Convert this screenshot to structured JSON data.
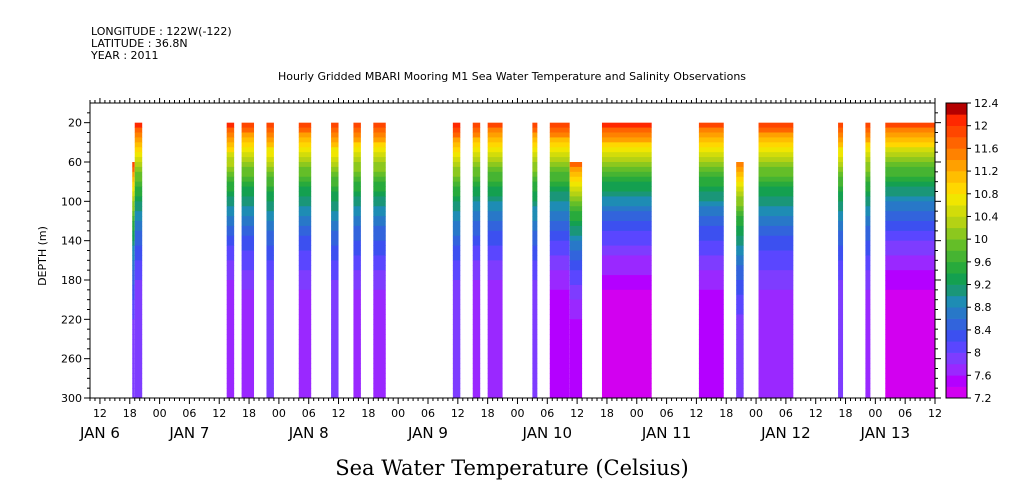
{
  "header": {
    "longitude": "LONGITUDE : 122W(-122)",
    "latitude": "LATITUDE : 36.8N",
    "year": "YEAR : 2011"
  },
  "footer": {
    "title": "Sea Water Temperature (Celsius)"
  },
  "chart_data": {
    "type": "heatmap",
    "title": "Hourly Gridded MBARI Mooring M1 Sea Water Temperature and Salinity Observations",
    "xlabel": "",
    "ylabel": "DEPTH (m)",
    "x_unit": "hours since JAN 6 00:00 (2011)",
    "xlim": [
      10,
      180
    ],
    "ylim": [
      300,
      0
    ],
    "y_ticks": [
      20,
      60,
      100,
      140,
      180,
      220,
      260,
      300
    ],
    "x_tick_labels": [
      {
        "x": 12,
        "label": "12"
      },
      {
        "x": 18,
        "label": "18"
      },
      {
        "x": 24,
        "label": "00"
      },
      {
        "x": 30,
        "label": "06"
      },
      {
        "x": 36,
        "label": "12"
      },
      {
        "x": 42,
        "label": "18"
      },
      {
        "x": 48,
        "label": "00"
      },
      {
        "x": 54,
        "label": "06"
      },
      {
        "x": 60,
        "label": "12"
      },
      {
        "x": 66,
        "label": "18"
      },
      {
        "x": 72,
        "label": "00"
      },
      {
        "x": 78,
        "label": "06"
      },
      {
        "x": 84,
        "label": "12"
      },
      {
        "x": 90,
        "label": "18"
      },
      {
        "x": 96,
        "label": "00"
      },
      {
        "x": 102,
        "label": "06"
      },
      {
        "x": 108,
        "label": "12"
      },
      {
        "x": 114,
        "label": "18"
      },
      {
        "x": 120,
        "label": "00"
      },
      {
        "x": 126,
        "label": "06"
      },
      {
        "x": 132,
        "label": "12"
      },
      {
        "x": 138,
        "label": "18"
      },
      {
        "x": 144,
        "label": "00"
      },
      {
        "x": 150,
        "label": "06"
      },
      {
        "x": 156,
        "label": "12"
      },
      {
        "x": 162,
        "label": "18"
      },
      {
        "x": 168,
        "label": "00"
      },
      {
        "x": 174,
        "label": "06"
      },
      {
        "x": 180,
        "label": "12"
      }
    ],
    "date_labels": [
      {
        "x": 12,
        "label": "JAN  6"
      },
      {
        "x": 30,
        "label": "JAN  7"
      },
      {
        "x": 54,
        "label": "JAN  8"
      },
      {
        "x": 78,
        "label": "JAN  9"
      },
      {
        "x": 102,
        "label": "JAN 10"
      },
      {
        "x": 126,
        "label": "JAN 11"
      },
      {
        "x": 150,
        "label": "JAN 12"
      },
      {
        "x": 170,
        "label": "JAN 13"
      }
    ],
    "colorbar": {
      "levels": [
        7.2,
        7.4,
        7.6,
        7.8,
        8.0,
        8.2,
        8.4,
        8.6,
        8.8,
        9.0,
        9.2,
        9.4,
        9.6,
        9.8,
        10.0,
        10.2,
        10.4,
        10.6,
        10.8,
        11.0,
        11.2,
        11.4,
        11.6,
        11.8,
        12.0,
        12.2,
        12.4
      ],
      "labels": [
        "12.4",
        "12",
        "11.6",
        "11.2",
        "10.8",
        "10.4",
        "10",
        "9.6",
        "9.2",
        "8.8",
        "8.4",
        "8",
        "7.6",
        "7.2"
      ],
      "colors": [
        "#d200f0",
        "#b400ff",
        "#9a28ff",
        "#7e3cff",
        "#5a46ff",
        "#3c50f0",
        "#3264dc",
        "#2878c8",
        "#1e8cb4",
        "#1a9678",
        "#14a050",
        "#28aa3c",
        "#46b432",
        "#64be28",
        "#8cc81e",
        "#b4d214",
        "#d2dc0a",
        "#f0e600",
        "#ffd700",
        "#ffbe00",
        "#ffa000",
        "#ff8200",
        "#ff6400",
        "#ff4600",
        "#ff2800",
        "#b40000"
      ]
    },
    "observation_segments": [
      {
        "start": 18.5,
        "end": 19.0,
        "top_depth": 60,
        "surface": 12.0,
        "bottom": 7.8
      },
      {
        "start": 19.0,
        "end": 20.5,
        "top_depth": 20,
        "surface": 12.2,
        "bottom": 7.8
      },
      {
        "start": 37.5,
        "end": 39.0,
        "top_depth": 20,
        "surface": 12.2,
        "bottom": 7.6
      },
      {
        "start": 40.5,
        "end": 43.0,
        "top_depth": 20,
        "surface": 12.0,
        "bottom": 7.7
      },
      {
        "start": 45.5,
        "end": 47.0,
        "top_depth": 20,
        "surface": 12.1,
        "bottom": 7.8
      },
      {
        "start": 52.0,
        "end": 54.5,
        "top_depth": 20,
        "surface": 12.0,
        "bottom": 7.7
      },
      {
        "start": 58.5,
        "end": 60.0,
        "top_depth": 20,
        "surface": 12.1,
        "bottom": 7.8
      },
      {
        "start": 63.0,
        "end": 64.5,
        "top_depth": 20,
        "surface": 12.1,
        "bottom": 7.7
      },
      {
        "start": 67.0,
        "end": 69.5,
        "top_depth": 20,
        "surface": 12.1,
        "bottom": 7.7
      },
      {
        "start": 83.0,
        "end": 84.5,
        "top_depth": 20,
        "surface": 12.3,
        "bottom": 7.8
      },
      {
        "start": 87.0,
        "end": 88.5,
        "top_depth": 20,
        "surface": 12.1,
        "bottom": 7.6
      },
      {
        "start": 90.0,
        "end": 93.0,
        "top_depth": 20,
        "surface": 12.0,
        "bottom": 7.6
      },
      {
        "start": 99.0,
        "end": 100.0,
        "top_depth": 20,
        "surface": 12.0,
        "bottom": 7.8
      },
      {
        "start": 102.5,
        "end": 106.5,
        "top_depth": 20,
        "surface": 12.1,
        "bottom": 7.5
      },
      {
        "start": 106.5,
        "end": 109.0,
        "top_depth": 60,
        "surface": 11.8,
        "bottom": 7.4
      },
      {
        "start": 113.0,
        "end": 123.0,
        "top_depth": 20,
        "surface": 12.2,
        "bottom": 7.3
      },
      {
        "start": 132.5,
        "end": 137.5,
        "top_depth": 20,
        "surface": 12.0,
        "bottom": 7.5
      },
      {
        "start": 140.0,
        "end": 141.5,
        "top_depth": 60,
        "surface": 11.7,
        "bottom": 7.8
      },
      {
        "start": 144.5,
        "end": 151.5,
        "top_depth": 20,
        "surface": 12.0,
        "bottom": 7.7
      },
      {
        "start": 160.5,
        "end": 161.5,
        "top_depth": 20,
        "surface": 12.1,
        "bottom": 7.8
      },
      {
        "start": 166.0,
        "end": 167.0,
        "top_depth": 20,
        "surface": 12.1,
        "bottom": 7.7
      },
      {
        "start": 170.0,
        "end": 180.0,
        "top_depth": 20,
        "surface": 12.0,
        "bottom": 7.3
      }
    ]
  }
}
